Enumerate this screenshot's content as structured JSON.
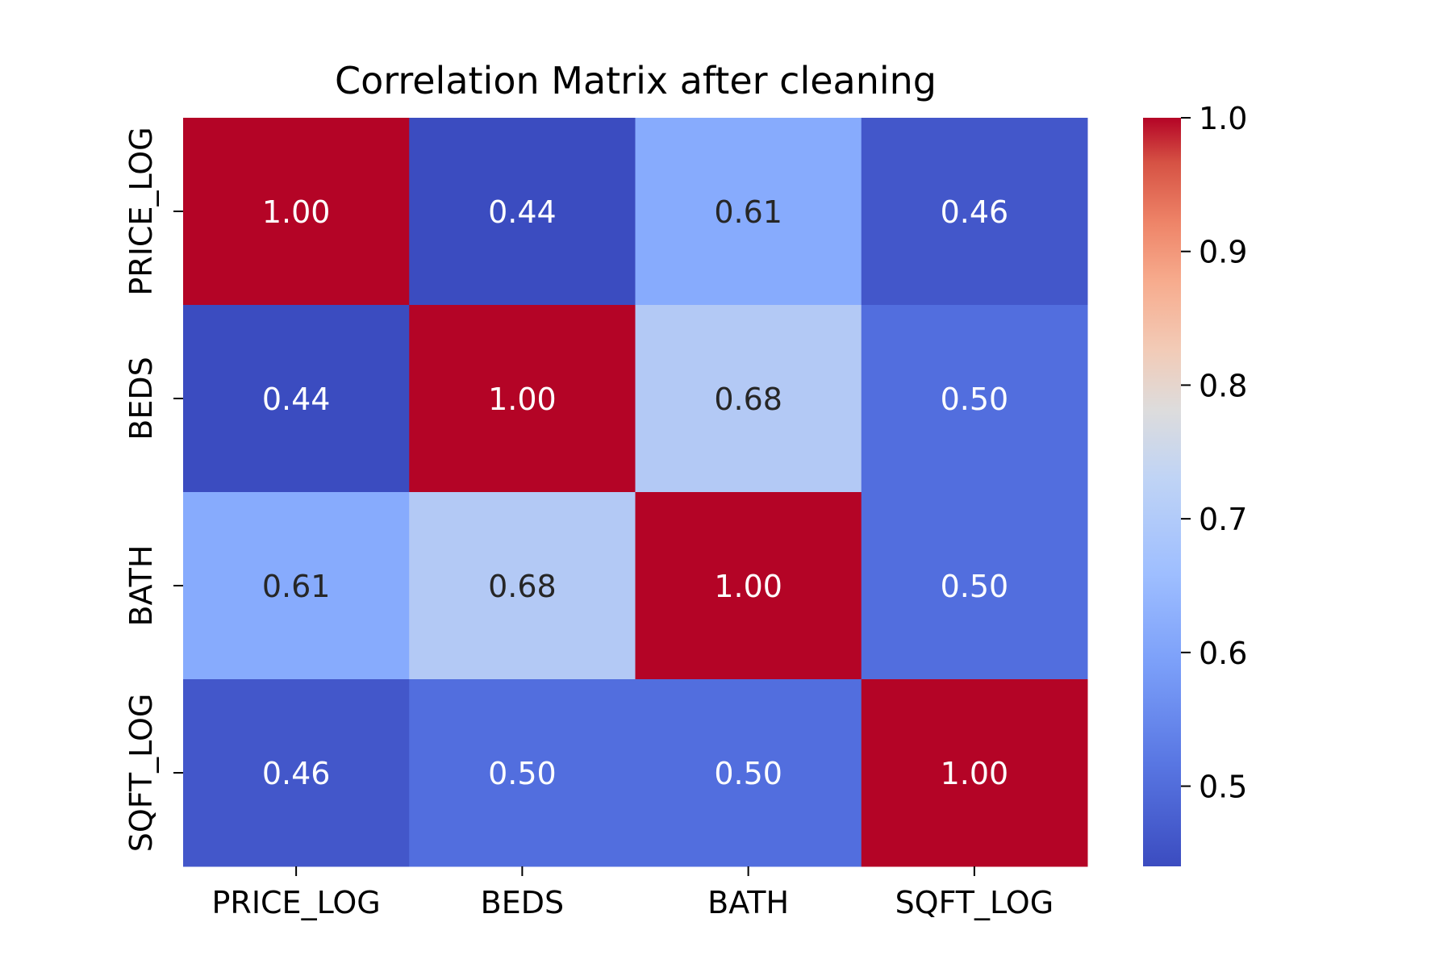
{
  "chart_data": {
    "type": "heatmap",
    "title": "Correlation Matrix after cleaning",
    "xlabel": "",
    "ylabel": "",
    "x_categories": [
      "PRICE_LOG",
      "BEDS",
      "BATH",
      "SQFT_LOG"
    ],
    "y_categories": [
      "PRICE_LOG",
      "BEDS",
      "BATH",
      "SQFT_LOG"
    ],
    "values": [
      [
        1.0,
        0.44,
        0.61,
        0.46
      ],
      [
        0.44,
        1.0,
        0.68,
        0.5
      ],
      [
        0.61,
        0.68,
        1.0,
        0.5
      ],
      [
        0.46,
        0.5,
        0.5,
        1.0
      ]
    ],
    "value_format": "2 decimals",
    "colormap": "coolwarm",
    "color_range": [
      0.44,
      1.0
    ],
    "colorbar": {
      "ticks": [
        0.5,
        0.6,
        0.7,
        0.8,
        0.9,
        1.0
      ],
      "tick_labels": [
        "0.5",
        "0.6",
        "0.7",
        "0.8",
        "0.9",
        "1.0"
      ],
      "position": "right"
    },
    "grid": false
  }
}
